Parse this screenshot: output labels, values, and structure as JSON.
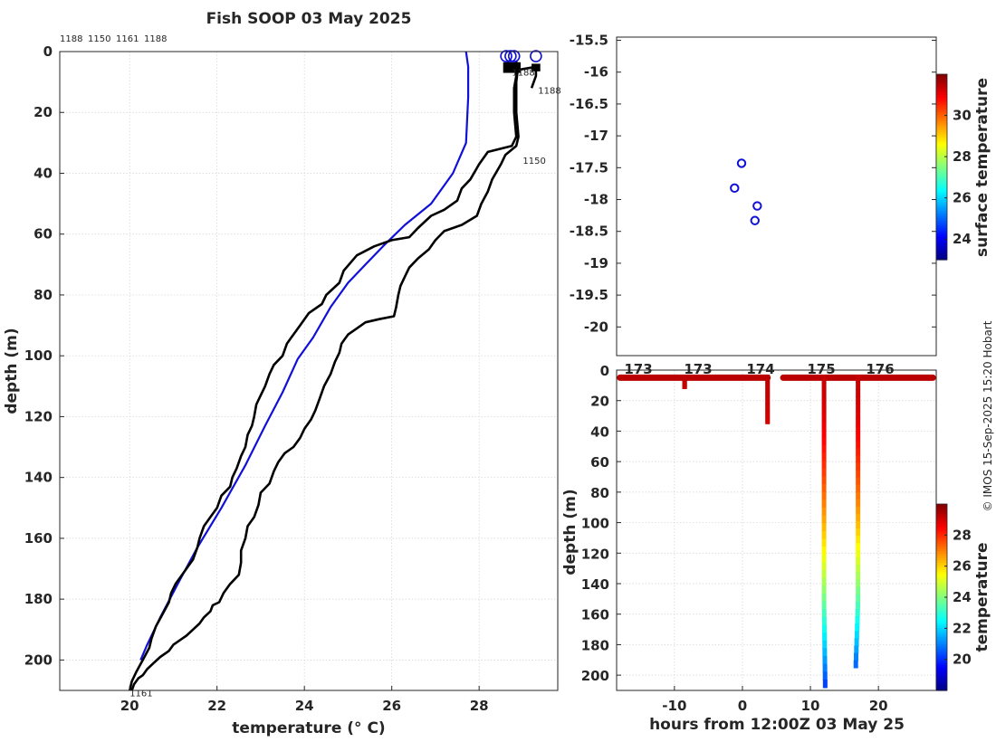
{
  "figure": {
    "credit": "© IMOS 15-Sep-2025 15:20 Hobart"
  },
  "chart_data": [
    {
      "type": "line",
      "title": "Fish SOOP 03 May 2025",
      "xlabel": "temperature (° C)",
      "ylabel": "depth (m)",
      "xlim": [
        18.4,
        29.8
      ],
      "ylim": [
        210,
        0
      ],
      "xticks": [
        20,
        22,
        24,
        26,
        28
      ],
      "yticks": [
        0,
        20,
        40,
        60,
        80,
        100,
        120,
        140,
        160,
        180,
        200
      ],
      "header_ids": [
        "1188",
        "1150",
        "1161",
        "1188"
      ],
      "profile_labels": [
        {
          "text": "1188",
          "t": 28.75,
          "d": 7
        },
        {
          "text": "1188",
          "t": 29.35,
          "d": 13
        },
        {
          "text": "1150",
          "t": 29.0,
          "d": 36
        },
        {
          "text": "1161",
          "t": 20.0,
          "d": 211
        }
      ],
      "series": [
        {
          "name": "climatology",
          "color": "#1010d8",
          "points": [
            [
              27.7,
              0
            ],
            [
              27.75,
              5
            ],
            [
              27.75,
              15
            ],
            [
              27.7,
              30
            ],
            [
              27.4,
              40
            ],
            [
              26.9,
              50
            ],
            [
              26.3,
              57
            ],
            [
              25.8,
              64
            ],
            [
              25.4,
              70
            ],
            [
              25.0,
              76
            ],
            [
              24.6,
              84
            ],
            [
              24.2,
              94
            ],
            [
              23.85,
              101
            ],
            [
              23.5,
              112
            ],
            [
              23.1,
              123
            ],
            [
              22.65,
              136
            ],
            [
              22.1,
              150
            ],
            [
              21.55,
              163
            ],
            [
              21.1,
              175
            ],
            [
              20.7,
              186
            ],
            [
              20.4,
              195
            ],
            [
              20.25,
              200
            ]
          ]
        },
        {
          "name": "profile-1150",
          "color": "#000000",
          "points": [
            [
              28.85,
              3
            ],
            [
              28.85,
              8
            ],
            [
              28.8,
              12
            ],
            [
              28.8,
              20
            ],
            [
              28.85,
              28
            ],
            [
              28.75,
              31
            ],
            [
              28.2,
              33
            ],
            [
              28.0,
              37
            ],
            [
              27.8,
              42
            ],
            [
              27.6,
              45
            ],
            [
              27.5,
              49
            ],
            [
              27.2,
              52
            ],
            [
              26.9,
              54
            ],
            [
              26.6,
              58
            ],
            [
              26.4,
              61
            ],
            [
              26.0,
              62
            ],
            [
              25.6,
              64
            ],
            [
              25.2,
              67
            ],
            [
              24.9,
              72
            ],
            [
              24.8,
              76
            ],
            [
              24.5,
              80
            ],
            [
              24.4,
              83
            ],
            [
              24.1,
              86
            ],
            [
              23.9,
              90
            ],
            [
              23.7,
              94
            ],
            [
              23.6,
              96
            ],
            [
              23.5,
              100
            ],
            [
              23.3,
              103
            ],
            [
              23.2,
              106
            ],
            [
              23.1,
              110
            ],
            [
              23.0,
              113
            ],
            [
              22.9,
              116
            ],
            [
              22.85,
              120
            ],
            [
              22.8,
              123
            ],
            [
              22.7,
              126
            ],
            [
              22.65,
              130
            ],
            [
              22.55,
              133
            ],
            [
              22.45,
              137
            ],
            [
              22.35,
              140
            ],
            [
              22.3,
              143
            ],
            [
              22.1,
              146
            ],
            [
              22.0,
              150
            ],
            [
              21.85,
              153
            ],
            [
              21.7,
              156
            ],
            [
              21.6,
              160
            ],
            [
              21.55,
              163
            ],
            [
              21.45,
              167
            ],
            [
              21.3,
              170
            ],
            [
              21.2,
              172
            ],
            [
              21.05,
              175
            ],
            [
              20.95,
              178
            ],
            [
              20.9,
              181
            ],
            [
              20.75,
              185
            ],
            [
              20.6,
              189
            ],
            [
              20.5,
              193
            ],
            [
              20.45,
              196
            ],
            [
              20.3,
              200
            ],
            [
              20.15,
              204
            ],
            [
              20.05,
              207
            ],
            [
              20.0,
              210
            ]
          ]
        },
        {
          "name": "profile-1161",
          "color": "#000000",
          "points": [
            [
              28.9,
              4
            ],
            [
              28.85,
              10
            ],
            [
              28.85,
              20
            ],
            [
              28.9,
              28
            ],
            [
              28.85,
              31
            ],
            [
              28.6,
              34
            ],
            [
              28.5,
              37
            ],
            [
              28.3,
              42
            ],
            [
              28.2,
              46
            ],
            [
              28.05,
              50
            ],
            [
              27.95,
              54
            ],
            [
              27.6,
              57
            ],
            [
              27.2,
              59
            ],
            [
              27.0,
              62
            ],
            [
              26.85,
              65
            ],
            [
              26.6,
              68
            ],
            [
              26.4,
              71
            ],
            [
              26.3,
              74
            ],
            [
              26.2,
              77
            ],
            [
              26.15,
              80
            ],
            [
              26.1,
              84
            ],
            [
              26.05,
              87
            ],
            [
              25.7,
              88
            ],
            [
              25.4,
              89
            ],
            [
              25.2,
              91
            ],
            [
              25.0,
              93
            ],
            [
              24.85,
              96
            ],
            [
              24.8,
              99
            ],
            [
              24.7,
              102
            ],
            [
              24.6,
              106
            ],
            [
              24.45,
              110
            ],
            [
              24.35,
              114
            ],
            [
              24.25,
              118
            ],
            [
              24.15,
              121
            ],
            [
              24.0,
              124
            ],
            [
              23.9,
              127
            ],
            [
              23.75,
              130
            ],
            [
              23.55,
              132
            ],
            [
              23.4,
              135
            ],
            [
              23.3,
              138
            ],
            [
              23.2,
              142
            ],
            [
              23.0,
              145
            ],
            [
              22.95,
              149
            ],
            [
              22.85,
              153
            ],
            [
              22.7,
              156
            ],
            [
              22.65,
              160
            ],
            [
              22.55,
              164
            ],
            [
              22.55,
              168
            ],
            [
              22.5,
              172
            ],
            [
              22.3,
              175
            ],
            [
              22.15,
              178
            ],
            [
              22.05,
              181
            ],
            [
              21.9,
              182
            ],
            [
              21.85,
              184
            ],
            [
              21.7,
              186
            ],
            [
              21.6,
              188
            ],
            [
              21.45,
              190
            ],
            [
              21.3,
              192
            ],
            [
              21.2,
              193
            ],
            [
              21.0,
              195
            ],
            [
              20.9,
              197
            ],
            [
              20.7,
              199
            ],
            [
              20.55,
              201
            ],
            [
              20.4,
              203
            ],
            [
              20.3,
              205
            ],
            [
              20.2,
              206
            ],
            [
              20.1,
              208
            ],
            [
              20.05,
              210
            ]
          ]
        },
        {
          "name": "profile-1188",
          "color": "#000000",
          "points": [
            [
              28.65,
              3
            ],
            [
              28.7,
              5
            ],
            [
              28.6,
              6
            ],
            [
              28.9,
              6
            ],
            [
              29.3,
              5
            ],
            [
              29.3,
              8
            ],
            [
              29.25,
              10
            ],
            [
              29.2,
              12
            ]
          ]
        }
      ],
      "markers": [
        {
          "name": "surface-1188-a",
          "t": 28.62,
          "d": 1.5
        },
        {
          "name": "surface-1150",
          "t": 28.72,
          "d": 1.5
        },
        {
          "name": "surface-1161",
          "t": 28.8,
          "d": 1.5
        },
        {
          "name": "surface-1188-b",
          "t": 29.3,
          "d": 1.5
        }
      ]
    },
    {
      "type": "scatter",
      "xlabel": "",
      "ylabel": "",
      "xlim": [
        172.3,
        177.8
      ],
      "ylim": [
        -20.45,
        -15.45
      ],
      "yticks": [
        -15.5,
        -16,
        -16.5,
        -17,
        -17.5,
        -18,
        -18.5,
        -19,
        -19.5,
        -20
      ],
      "points": [
        {
          "lon": 174.45,
          "lat": -17.43
        },
        {
          "lon": 174.33,
          "lat": -17.82
        },
        {
          "lon": 174.72,
          "lat": -18.1
        },
        {
          "lon": 174.68,
          "lat": -18.33
        }
      ],
      "colorbar": {
        "label": "surface temperature",
        "range": [
          23,
          32
        ],
        "ticks": [
          24,
          26,
          28,
          30
        ]
      }
    },
    {
      "type": "scatter",
      "xlabel": "hours from 12:00Z 03 May 25",
      "ylabel": "depth (m)",
      "xlim": [
        -18.5,
        28.5
      ],
      "ylim": [
        210,
        0
      ],
      "xticks": [
        -10,
        0,
        10,
        20
      ],
      "yticks": [
        0,
        20,
        40,
        60,
        80,
        100,
        120,
        140,
        160,
        180,
        200
      ],
      "top_tick_labels": [
        "173",
        "173",
        "174",
        "175",
        "176"
      ],
      "surface_band": {
        "depth": 5,
        "segments": [
          [
            -18,
            3.7
          ],
          [
            6,
            28
          ]
        ]
      },
      "casts": [
        {
          "name": "cast-a",
          "hour": -8.5,
          "bottom": 12,
          "t0": 29.3,
          "t1": 29.1
        },
        {
          "name": "cast-b",
          "hour": 3.7,
          "bottom": 35,
          "t0": 29.3,
          "t1": 29.0
        },
        {
          "name": "cast-c",
          "hour": 12.0,
          "bottom": 208,
          "t0": 29.2,
          "t1": 20.1
        },
        {
          "name": "cast-d",
          "hour": 17.0,
          "bottom": 195,
          "t0": 29.2,
          "t1": 20.6
        }
      ],
      "colorbar": {
        "label": "temperature",
        "range": [
          18,
          30
        ],
        "ticks": [
          20,
          22,
          24,
          26,
          28
        ]
      }
    }
  ]
}
